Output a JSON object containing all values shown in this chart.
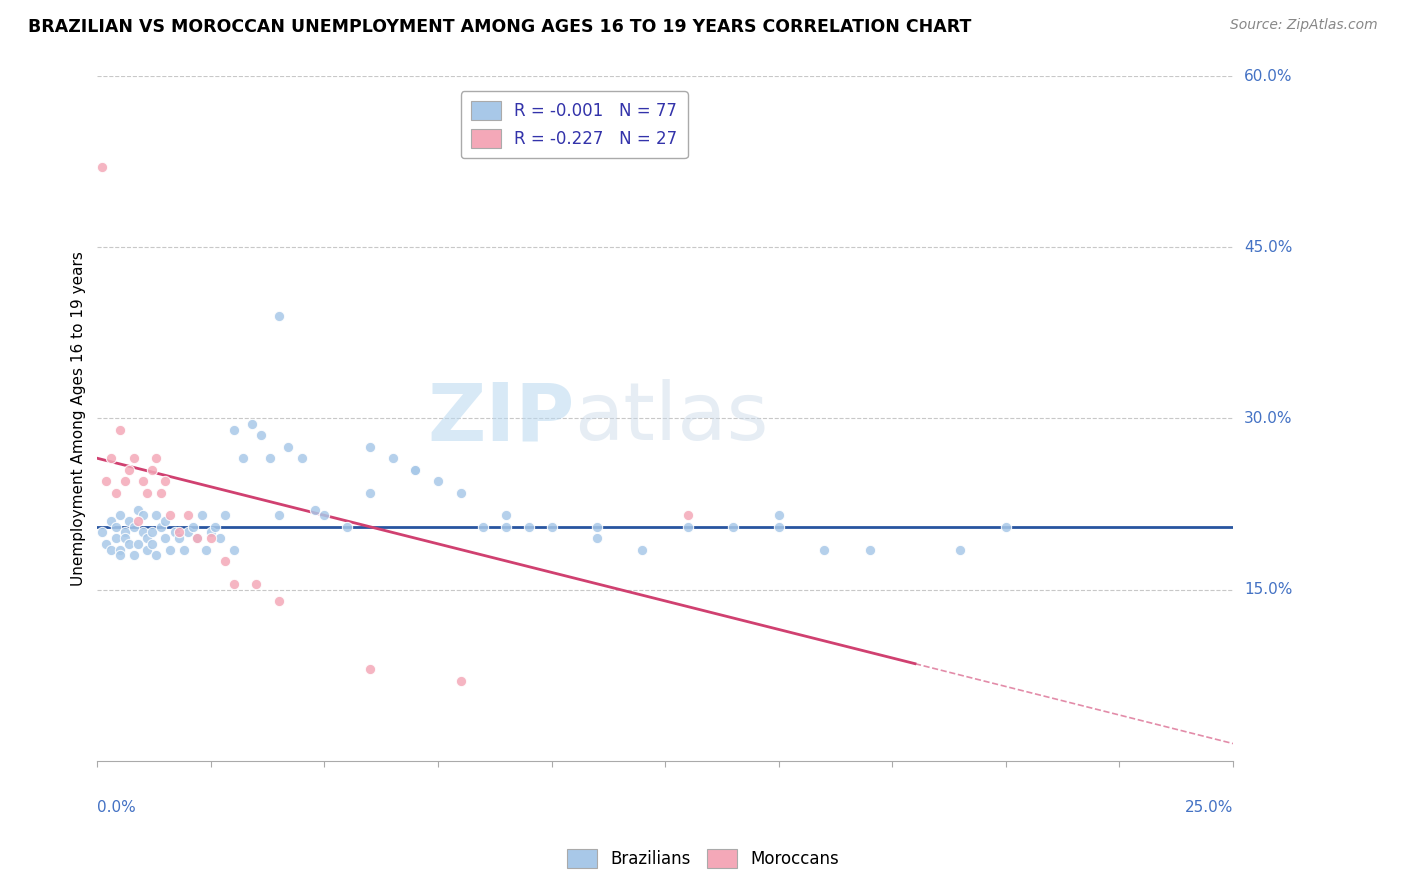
{
  "title": "BRAZILIAN VS MOROCCAN UNEMPLOYMENT AMONG AGES 16 TO 19 YEARS CORRELATION CHART",
  "source": "Source: ZipAtlas.com",
  "ylabel_label": "Unemployment Among Ages 16 to 19 years",
  "legend_line1_R": "R = -0.001",
  "legend_line1_N": "N = 77",
  "legend_line2_R": "R = -0.227",
  "legend_line2_N": "N = 27",
  "watermark_zip": "ZIP",
  "watermark_atlas": "atlas",
  "brazil_color": "#a8c8e8",
  "morocco_color": "#f4a8b8",
  "brazil_trend_color": "#2855a0",
  "morocco_trend_color": "#d04070",
  "xmin": 0.0,
  "xmax": 0.25,
  "ymin": 0.0,
  "ymax": 0.6,
  "brazil_scatter_x": [
    0.001,
    0.002,
    0.003,
    0.003,
    0.004,
    0.004,
    0.005,
    0.005,
    0.005,
    0.006,
    0.006,
    0.007,
    0.007,
    0.008,
    0.008,
    0.009,
    0.009,
    0.01,
    0.01,
    0.011,
    0.011,
    0.012,
    0.012,
    0.013,
    0.013,
    0.014,
    0.015,
    0.015,
    0.016,
    0.017,
    0.018,
    0.019,
    0.02,
    0.021,
    0.022,
    0.023,
    0.024,
    0.025,
    0.026,
    0.027,
    0.028,
    0.03,
    0.032,
    0.034,
    0.036,
    0.038,
    0.04,
    0.042,
    0.045,
    0.048,
    0.05,
    0.055,
    0.06,
    0.065,
    0.07,
    0.075,
    0.08,
    0.085,
    0.09,
    0.095,
    0.1,
    0.11,
    0.12,
    0.13,
    0.14,
    0.15,
    0.16,
    0.17,
    0.19,
    0.2,
    0.03,
    0.04,
    0.06,
    0.07,
    0.09,
    0.11,
    0.15
  ],
  "brazil_scatter_y": [
    0.2,
    0.19,
    0.21,
    0.185,
    0.205,
    0.195,
    0.215,
    0.185,
    0.18,
    0.2,
    0.195,
    0.19,
    0.21,
    0.205,
    0.18,
    0.22,
    0.19,
    0.2,
    0.215,
    0.195,
    0.185,
    0.2,
    0.19,
    0.215,
    0.18,
    0.205,
    0.195,
    0.21,
    0.185,
    0.2,
    0.195,
    0.185,
    0.2,
    0.205,
    0.195,
    0.215,
    0.185,
    0.2,
    0.205,
    0.195,
    0.215,
    0.29,
    0.265,
    0.295,
    0.285,
    0.265,
    0.39,
    0.275,
    0.265,
    0.22,
    0.215,
    0.205,
    0.275,
    0.265,
    0.255,
    0.245,
    0.235,
    0.205,
    0.215,
    0.205,
    0.205,
    0.195,
    0.185,
    0.205,
    0.205,
    0.215,
    0.185,
    0.185,
    0.185,
    0.205,
    0.185,
    0.215,
    0.235,
    0.255,
    0.205,
    0.205,
    0.205
  ],
  "morocco_scatter_x": [
    0.001,
    0.002,
    0.003,
    0.004,
    0.005,
    0.006,
    0.007,
    0.008,
    0.009,
    0.01,
    0.011,
    0.012,
    0.013,
    0.014,
    0.015,
    0.016,
    0.018,
    0.02,
    0.022,
    0.025,
    0.028,
    0.03,
    0.035,
    0.04,
    0.06,
    0.08,
    0.13
  ],
  "morocco_scatter_y": [
    0.52,
    0.245,
    0.265,
    0.235,
    0.29,
    0.245,
    0.255,
    0.265,
    0.21,
    0.245,
    0.235,
    0.255,
    0.265,
    0.235,
    0.245,
    0.215,
    0.2,
    0.215,
    0.195,
    0.195,
    0.175,
    0.155,
    0.155,
    0.14,
    0.08,
    0.07,
    0.215
  ],
  "brazil_trend_y0": 0.205,
  "brazil_trend_y1": 0.205,
  "morocco_trend_x0": 0.0,
  "morocco_trend_y0": 0.265,
  "morocco_trend_x1": 0.18,
  "morocco_trend_y1": 0.085
}
